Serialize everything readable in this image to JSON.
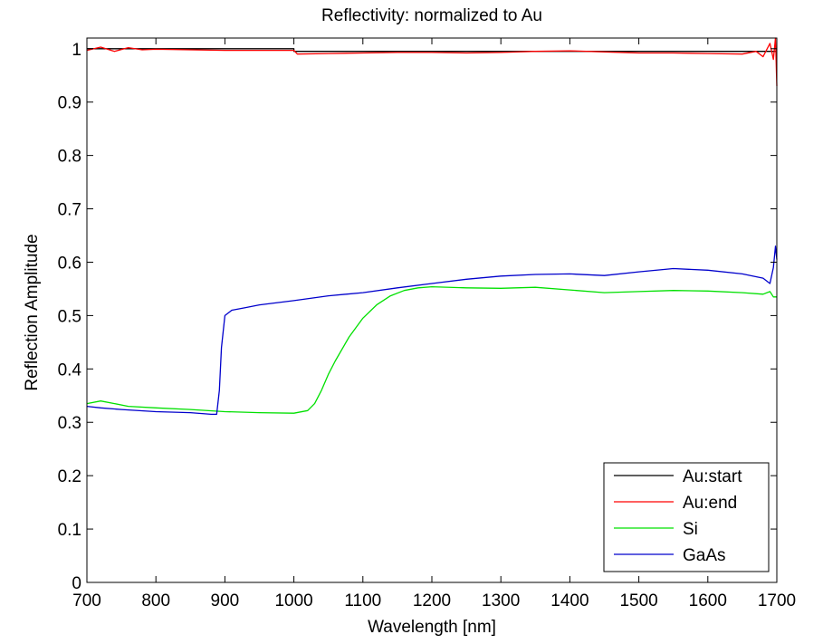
{
  "chart_data": {
    "type": "line",
    "title": "Reflectivity: normalized to Au",
    "xlabel": "Wavelength [nm]",
    "ylabel": "Reflection Amplitude",
    "xlim": [
      700,
      1700
    ],
    "ylim": [
      0,
      1.02
    ],
    "xticks": [
      700,
      800,
      900,
      1000,
      1100,
      1200,
      1300,
      1400,
      1500,
      1600,
      1700
    ],
    "yticks": [
      0,
      0.1,
      0.2,
      0.3,
      0.4,
      0.5,
      0.6,
      0.7,
      0.8,
      0.9,
      1
    ],
    "ytick_labels": [
      "0",
      "0.1",
      "0.2",
      "0.3",
      "0.4",
      "0.5",
      "0.6",
      "0.7",
      "0.8",
      "0.9",
      "1"
    ],
    "grid": false,
    "legend_position": "bottom-right",
    "series": [
      {
        "name": "Au:start",
        "color": "#000000",
        "x": [
          700,
          1000,
          1000,
          1700
        ],
        "y": [
          1.0,
          1.0,
          0.995,
          0.995
        ]
      },
      {
        "name": "Au:end",
        "color": "#ff0000",
        "x": [
          700,
          720,
          740,
          760,
          780,
          800,
          850,
          900,
          950,
          1000,
          1005,
          1050,
          1100,
          1150,
          1200,
          1250,
          1300,
          1350,
          1400,
          1450,
          1500,
          1550,
          1600,
          1650,
          1670,
          1680,
          1690,
          1695,
          1698,
          1700
        ],
        "y": [
          0.997,
          1.003,
          0.995,
          1.002,
          0.998,
          0.999,
          0.998,
          0.997,
          0.997,
          0.997,
          0.99,
          0.991,
          0.992,
          0.993,
          0.993,
          0.992,
          0.993,
          0.995,
          0.996,
          0.994,
          0.992,
          0.992,
          0.991,
          0.99,
          0.995,
          0.985,
          1.01,
          0.98,
          1.02,
          0.93
        ]
      },
      {
        "name": "Si",
        "color": "#00e000",
        "x": [
          700,
          720,
          740,
          760,
          800,
          850,
          900,
          950,
          1000,
          1020,
          1030,
          1040,
          1050,
          1060,
          1080,
          1100,
          1120,
          1140,
          1160,
          1180,
          1200,
          1250,
          1300,
          1350,
          1400,
          1450,
          1500,
          1550,
          1600,
          1650,
          1680,
          1690,
          1695,
          1700
        ],
        "y": [
          0.335,
          0.34,
          0.335,
          0.33,
          0.327,
          0.324,
          0.32,
          0.318,
          0.317,
          0.322,
          0.335,
          0.36,
          0.39,
          0.415,
          0.46,
          0.495,
          0.52,
          0.537,
          0.547,
          0.552,
          0.554,
          0.552,
          0.551,
          0.553,
          0.548,
          0.543,
          0.545,
          0.547,
          0.546,
          0.543,
          0.54,
          0.545,
          0.535,
          0.535
        ]
      },
      {
        "name": "GaAs",
        "color": "#0000cc",
        "x": [
          700,
          720,
          750,
          800,
          850,
          880,
          888,
          892,
          895,
          900,
          910,
          930,
          950,
          1000,
          1050,
          1100,
          1150,
          1200,
          1250,
          1300,
          1350,
          1400,
          1450,
          1500,
          1550,
          1600,
          1650,
          1680,
          1690,
          1695,
          1698,
          1700
        ],
        "y": [
          0.33,
          0.327,
          0.324,
          0.32,
          0.318,
          0.315,
          0.315,
          0.36,
          0.44,
          0.5,
          0.51,
          0.515,
          0.52,
          0.528,
          0.537,
          0.543,
          0.552,
          0.56,
          0.568,
          0.574,
          0.577,
          0.578,
          0.575,
          0.582,
          0.588,
          0.585,
          0.578,
          0.57,
          0.56,
          0.59,
          0.63,
          0.605
        ]
      }
    ]
  }
}
